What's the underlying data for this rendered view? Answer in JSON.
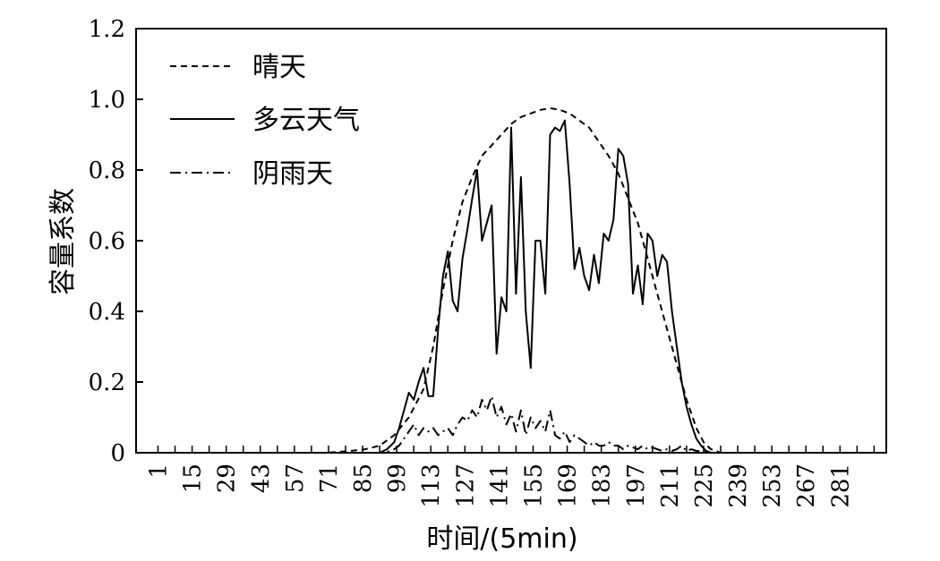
{
  "chart_data": {
    "type": "line",
    "xlabel": "时间/(5min)",
    "ylabel": "容量系数",
    "xtick_labels": [
      "1",
      "15",
      "29",
      "43",
      "57",
      "71",
      "85",
      "99",
      "113",
      "127",
      "141",
      "155",
      "169",
      "183",
      "197",
      "211",
      "225",
      "239",
      "253",
      "267",
      "281"
    ],
    "xlim": [
      -8,
      300
    ],
    "ylim": [
      0,
      1.2
    ],
    "yticks": [
      {
        "value": 0,
        "label": "0"
      },
      {
        "value": 0.2,
        "label": "0.2"
      },
      {
        "value": 0.4,
        "label": "0.4"
      },
      {
        "value": 0.6,
        "label": "0.6"
      },
      {
        "value": 0.8,
        "label": "0.8"
      },
      {
        "value": 1.0,
        "label": "1.0"
      },
      {
        "value": 1.2,
        "label": "1.2"
      }
    ],
    "grid": false,
    "legend_position": "top-left",
    "series": [
      {
        "name": "晴天",
        "style": "dashed",
        "x": [
          -8,
          70,
          80,
          86,
          92,
          98,
          104,
          110,
          114,
          118,
          122,
          126,
          130,
          134,
          138,
          142,
          146,
          150,
          154,
          158,
          162,
          166,
          170,
          174,
          178,
          182,
          186,
          190,
          194,
          198,
          202,
          206,
          210,
          214,
          218,
          222,
          225,
          228,
          232,
          300
        ],
        "y": [
          0,
          0,
          0.005,
          0.01,
          0.02,
          0.05,
          0.1,
          0.18,
          0.3,
          0.46,
          0.6,
          0.71,
          0.78,
          0.84,
          0.87,
          0.9,
          0.93,
          0.95,
          0.96,
          0.97,
          0.975,
          0.97,
          0.96,
          0.94,
          0.92,
          0.88,
          0.84,
          0.79,
          0.72,
          0.65,
          0.55,
          0.45,
          0.35,
          0.25,
          0.15,
          0.07,
          0.03,
          0.01,
          0,
          0
        ]
      },
      {
        "name": "多云天气",
        "style": "solid",
        "x": [
          -8,
          92,
          95,
          98,
          100,
          102,
          104,
          106,
          108,
          110,
          112,
          114,
          116,
          118,
          120,
          122,
          124,
          126,
          128,
          130,
          132,
          134,
          136,
          138,
          140,
          142,
          144,
          146,
          148,
          150,
          152,
          154,
          156,
          158,
          160,
          162,
          164,
          166,
          168,
          170,
          172,
          174,
          176,
          178,
          180,
          182,
          184,
          186,
          188,
          190,
          192,
          194,
          196,
          198,
          200,
          202,
          204,
          206,
          208,
          210,
          212,
          214,
          216,
          218,
          220,
          222,
          224,
          226,
          228,
          300
        ],
        "y": [
          0,
          0,
          0.01,
          0.03,
          0.07,
          0.12,
          0.17,
          0.15,
          0.2,
          0.24,
          0.16,
          0.16,
          0.35,
          0.5,
          0.57,
          0.43,
          0.4,
          0.55,
          0.63,
          0.72,
          0.8,
          0.6,
          0.65,
          0.7,
          0.28,
          0.44,
          0.4,
          0.92,
          0.45,
          0.78,
          0.4,
          0.24,
          0.6,
          0.6,
          0.45,
          0.9,
          0.92,
          0.91,
          0.94,
          0.76,
          0.52,
          0.58,
          0.5,
          0.46,
          0.56,
          0.48,
          0.62,
          0.6,
          0.66,
          0.86,
          0.84,
          0.76,
          0.45,
          0.53,
          0.42,
          0.62,
          0.6,
          0.5,
          0.56,
          0.54,
          0.4,
          0.3,
          0.2,
          0.13,
          0.08,
          0.04,
          0.02,
          0.005,
          0,
          0
        ]
      },
      {
        "name": "阴雨天",
        "style": "dashdot",
        "x": [
          -8,
          94,
          98,
          100,
          102,
          104,
          106,
          108,
          110,
          112,
          114,
          116,
          118,
          120,
          122,
          124,
          126,
          128,
          130,
          132,
          134,
          136,
          138,
          140,
          142,
          144,
          146,
          148,
          150,
          152,
          154,
          156,
          158,
          160,
          162,
          164,
          166,
          168,
          170,
          172,
          174,
          176,
          178,
          180,
          182,
          184,
          186,
          188,
          190,
          192,
          194,
          196,
          198,
          200,
          202,
          204,
          206,
          208,
          210,
          212,
          214,
          216,
          218,
          220,
          222,
          224,
          226,
          300
        ],
        "y": [
          0,
          0,
          0.01,
          0.02,
          0.04,
          0.06,
          0.08,
          0.05,
          0.07,
          0.06,
          0.07,
          0.05,
          0.06,
          0.07,
          0.05,
          0.08,
          0.1,
          0.09,
          0.12,
          0.1,
          0.15,
          0.12,
          0.16,
          0.1,
          0.13,
          0.08,
          0.11,
          0.06,
          0.12,
          0.05,
          0.1,
          0.07,
          0.09,
          0.06,
          0.12,
          0.05,
          0.04,
          0.06,
          0.03,
          0.05,
          0.04,
          0.03,
          0.02,
          0.03,
          0.02,
          0.02,
          0.03,
          0.02,
          0.02,
          0.01,
          0.02,
          0.015,
          0.01,
          0.02,
          0.01,
          0.015,
          0.01,
          0.005,
          0.01,
          0.005,
          0.01,
          0.02,
          0.005,
          0.01,
          0.005,
          0.005,
          0,
          0
        ]
      }
    ]
  }
}
